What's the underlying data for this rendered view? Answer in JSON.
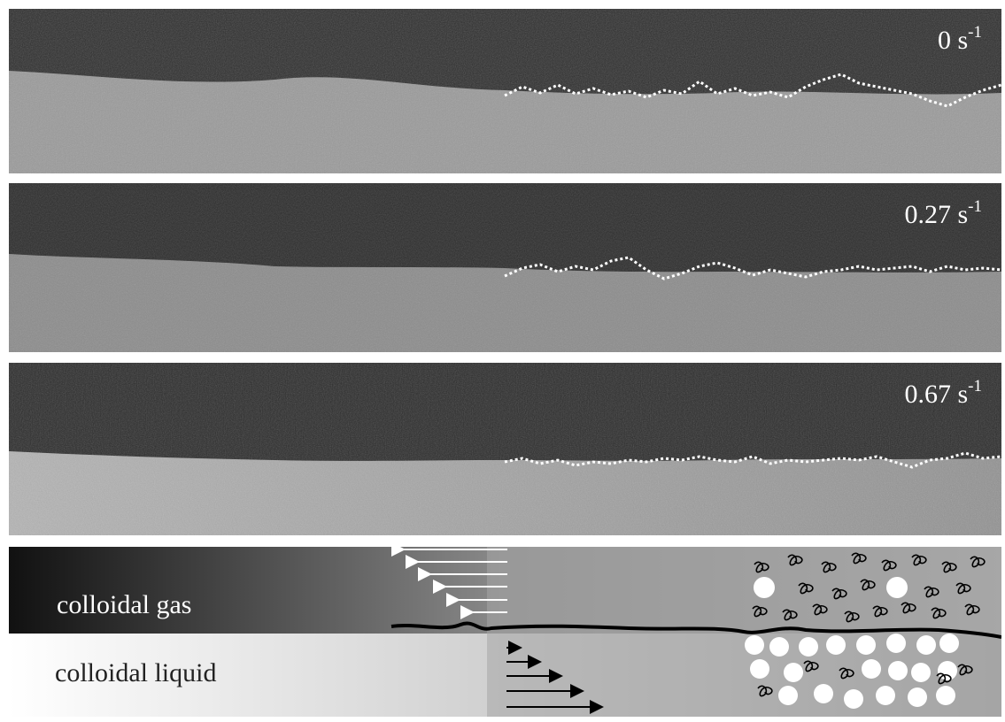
{
  "panels": [
    {
      "rate_value": "0 s",
      "rate_exponent": "-1"
    },
    {
      "rate_value": "0.27 s",
      "rate_exponent": "-1"
    },
    {
      "rate_value": "0.67 s",
      "rate_exponent": "-1"
    }
  ],
  "schematic": {
    "gas_label": "colloidal gas",
    "liquid_label": "colloidal liquid"
  },
  "colors": {
    "gas_dark": "#2a2a2a",
    "liquid_light": "#bdbdbd",
    "interface_trace": "#ffffff",
    "schematic_gray": "#a7a7a7"
  }
}
